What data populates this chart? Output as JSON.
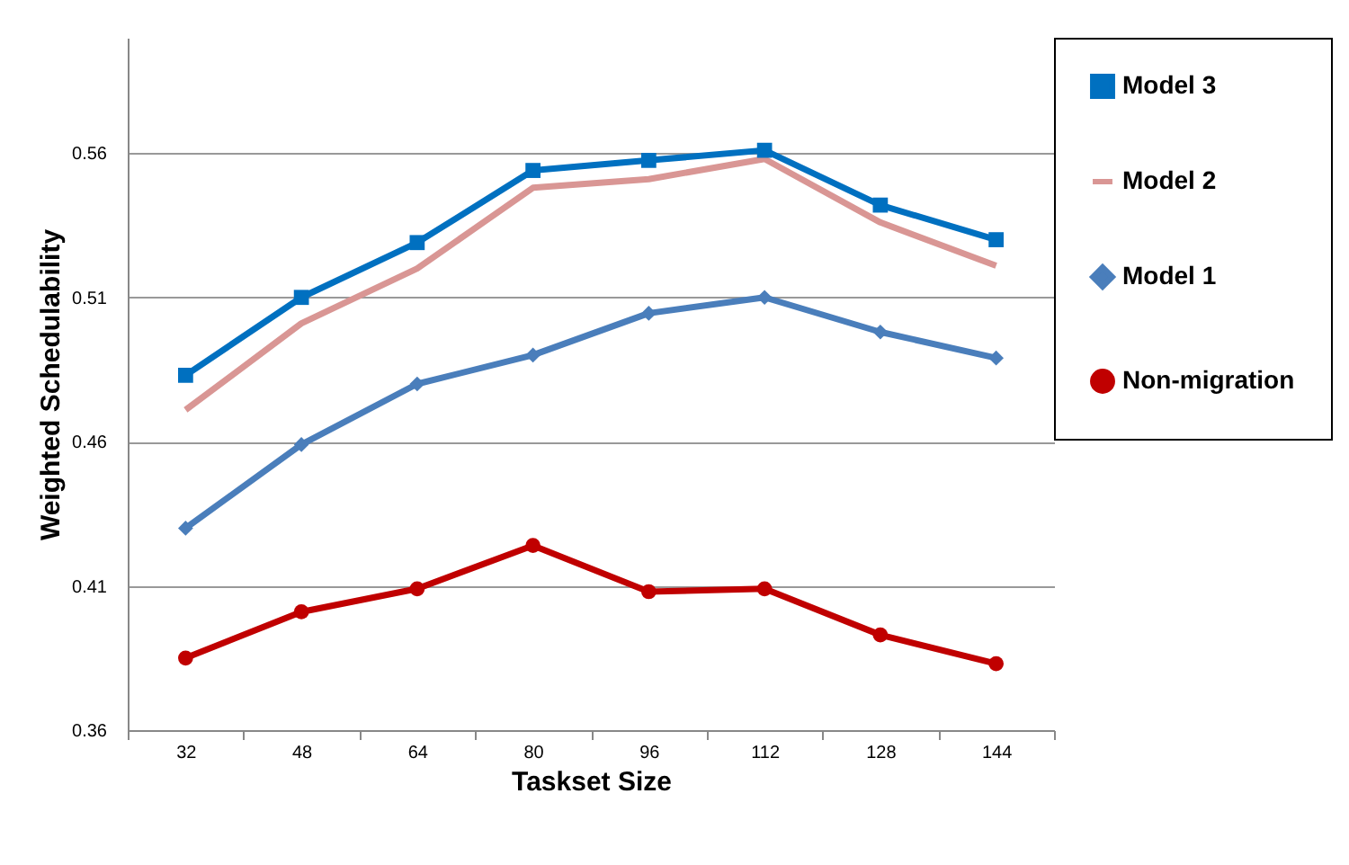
{
  "chart_data": {
    "type": "line",
    "xlabel": "Taskset Size",
    "ylabel": "Weighted Schedulability",
    "categories": [
      "32",
      "48",
      "64",
      "80",
      "96",
      "112",
      "128",
      "144"
    ],
    "series": [
      {
        "name": "Model 3",
        "color": "#0070c0",
        "marker": "square",
        "values": [
          0.483,
          0.51,
          0.529,
          0.554,
          0.5575,
          0.561,
          0.542,
          0.53
        ]
      },
      {
        "name": "Model 2",
        "color": "#d99694",
        "marker": "none",
        "values": [
          0.471,
          0.501,
          0.52,
          0.548,
          0.551,
          0.558,
          0.536,
          0.521
        ]
      },
      {
        "name": "Model 1",
        "color": "#4a7ebb",
        "marker": "diamond",
        "values": [
          0.43,
          0.459,
          0.48,
          0.49,
          0.5045,
          0.51,
          0.498,
          0.489
        ]
      },
      {
        "name": "Non-migration",
        "color": "#c00000",
        "marker": "circle",
        "values": [
          0.385,
          0.401,
          0.409,
          0.424,
          0.408,
          0.409,
          0.393,
          0.383
        ]
      }
    ],
    "ylim": [
      0.36,
      0.6
    ],
    "yticks": [
      0.36,
      0.41,
      0.46,
      0.51,
      0.56
    ],
    "grid": "y",
    "legend": "right"
  }
}
